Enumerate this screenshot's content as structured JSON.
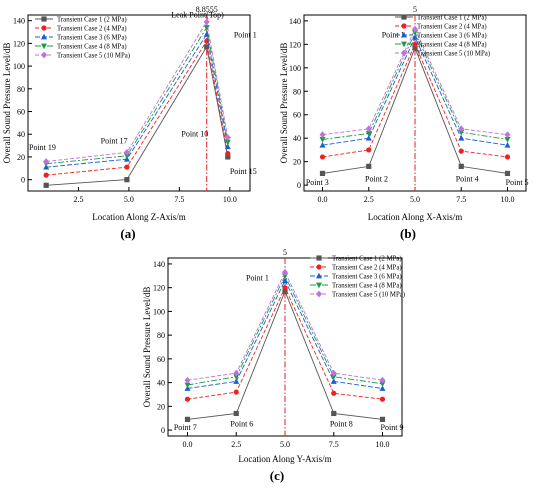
{
  "colors": {
    "series": [
      "#555555",
      "#ee2222",
      "#1a5fd6",
      "#1a9c44",
      "#c36fe0"
    ],
    "marker_line": "#e0202a"
  },
  "chart_data": [
    {
      "type": "line",
      "panel_label": "(a)",
      "xlabel": "Location Along Z-Axis/m",
      "ylabel": "Overall Sound Pressure Level/dB",
      "xlim": [
        0,
        11
      ],
      "ylim": [
        -10,
        145
      ],
      "xticks": [
        "2.5",
        "5.0",
        "7.5",
        "10.0"
      ],
      "xtick_values": [
        2.5,
        5.0,
        7.5,
        10.0
      ],
      "yticks": [
        "0",
        "20",
        "40",
        "60",
        "80",
        "100",
        "120",
        "140"
      ],
      "ytick_values": [
        0,
        20,
        40,
        60,
        80,
        100,
        120,
        140
      ],
      "x": [
        0.9,
        4.9,
        8.8555,
        9.9
      ],
      "series": [
        {
          "name": "Transient Case 1 (2 MPa)",
          "marker": "square",
          "values": [
            -5,
            0,
            117,
            20
          ]
        },
        {
          "name": "Transient Case 2 (4 MPa)",
          "marker": "circle",
          "values": [
            4,
            11,
            122,
            23
          ]
        },
        {
          "name": "Transient Case 3 (6 MPa)",
          "marker": "triangle-up",
          "values": [
            11,
            18,
            128,
            29
          ]
        },
        {
          "name": "Transient Case 4 (8 MPa)",
          "marker": "triangle-down",
          "values": [
            14,
            21,
            134,
            33
          ]
        },
        {
          "name": "Transient Case 5 (10 MPa)",
          "marker": "diamond",
          "values": [
            16,
            24,
            139,
            37
          ]
        }
      ],
      "vline": {
        "x": 8.8555,
        "label": "8.8555"
      },
      "annotations": [
        {
          "text": "Leak Point(Top)",
          "x": 7.1,
          "y": 143
        },
        {
          "text": "Point 1",
          "x": 10.2,
          "y": 125
        },
        {
          "text": "Point 19",
          "x": 0.05,
          "y": 26
        },
        {
          "text": "Point 17",
          "x": 3.6,
          "y": 32
        },
        {
          "text": "Point 10",
          "x": 7.6,
          "y": 38
        },
        {
          "text": "Point 15",
          "x": 10.0,
          "y": 5
        }
      ],
      "legend": "top-left"
    },
    {
      "type": "line",
      "panel_label": "(b)",
      "xlabel": "Location Along X-Axis/m",
      "ylabel": "Overall Sound Pressure Level/dB",
      "xlim": [
        -1,
        11
      ],
      "ylim": [
        -5,
        145
      ],
      "xticks": [
        "0.0",
        "2.5",
        "5.0",
        "7.5",
        "10.0"
      ],
      "xtick_values": [
        0,
        2.5,
        5.0,
        7.5,
        10.0
      ],
      "yticks": [
        "0",
        "20",
        "40",
        "60",
        "80",
        "100",
        "120",
        "140"
      ],
      "ytick_values": [
        0,
        20,
        40,
        60,
        80,
        100,
        120,
        140
      ],
      "x": [
        0,
        2.5,
        5,
        7.5,
        10
      ],
      "series": [
        {
          "name": "Transient Case 1 (2 MPa)",
          "marker": "square",
          "values": [
            10,
            16,
            117,
            16,
            10
          ]
        },
        {
          "name": "Transient Case 2 (4 MPa)",
          "marker": "circle",
          "values": [
            24,
            30,
            120,
            29,
            24
          ]
        },
        {
          "name": "Transient Case 3 (6 MPa)",
          "marker": "triangle-up",
          "values": [
            34,
            40,
            126,
            40,
            34
          ]
        },
        {
          "name": "Transient Case 4 (8 MPa)",
          "marker": "triangle-down",
          "values": [
            39,
            44,
            130,
            45,
            39
          ]
        },
        {
          "name": "Transient Case 5 (10 MPa)",
          "marker": "diamond",
          "values": [
            43,
            48,
            133,
            48,
            43
          ]
        }
      ],
      "vline": {
        "x": 5,
        "label": "5"
      },
      "annotations": [
        {
          "text": "Point 1",
          "x": 3.2,
          "y": 126
        },
        {
          "text": "Point 3",
          "x": -0.9,
          "y": 0
        },
        {
          "text": "Point 2",
          "x": 2.3,
          "y": 3
        },
        {
          "text": "Point 4",
          "x": 7.2,
          "y": 3
        },
        {
          "text": "Point 5",
          "x": 9.9,
          "y": 0
        }
      ],
      "legend": "top-right"
    },
    {
      "type": "line",
      "panel_label": "(c)",
      "xlabel": "Location Along Y-Axis/m",
      "ylabel": "Overall Sound Pressure Level/dB",
      "xlim": [
        -1,
        11
      ],
      "ylim": [
        -5,
        145
      ],
      "xticks": [
        "0.0",
        "2.5",
        "5.0",
        "7.5",
        "10.0"
      ],
      "xtick_values": [
        0,
        2.5,
        5.0,
        7.5,
        10.0
      ],
      "yticks": [
        "0",
        "20",
        "40",
        "60",
        "80",
        "100",
        "120",
        "140"
      ],
      "ytick_values": [
        0,
        20,
        40,
        60,
        80,
        100,
        120,
        140
      ],
      "x": [
        0,
        2.5,
        5,
        7.5,
        10
      ],
      "series": [
        {
          "name": "Transient Case 1 (2 MPa)",
          "marker": "square",
          "values": [
            9,
            14,
            117,
            14,
            9
          ]
        },
        {
          "name": "Transient Case 2 (4 MPa)",
          "marker": "circle",
          "values": [
            26,
            32,
            120,
            31,
            26
          ]
        },
        {
          "name": "Transient Case 3 (6 MPa)",
          "marker": "triangle-up",
          "values": [
            35,
            41,
            126,
            41,
            35
          ]
        },
        {
          "name": "Transient Case 4 (8 MPa)",
          "marker": "triangle-down",
          "values": [
            38,
            45,
            130,
            45,
            39
          ]
        },
        {
          "name": "Transient Case 5 (10 MPa)",
          "marker": "diamond",
          "values": [
            42,
            48,
            133,
            48,
            42
          ]
        }
      ],
      "vline": {
        "x": 5,
        "label": "5"
      },
      "annotations": [
        {
          "text": "Point 1",
          "x": 3.0,
          "y": 126
        },
        {
          "text": "Point 7",
          "x": -0.7,
          "y": 0
        },
        {
          "text": "Point 6",
          "x": 2.2,
          "y": 3
        },
        {
          "text": "Point 8",
          "x": 7.3,
          "y": 3
        },
        {
          "text": "Point 9",
          "x": 9.9,
          "y": 0
        }
      ],
      "legend": "top-right"
    }
  ]
}
